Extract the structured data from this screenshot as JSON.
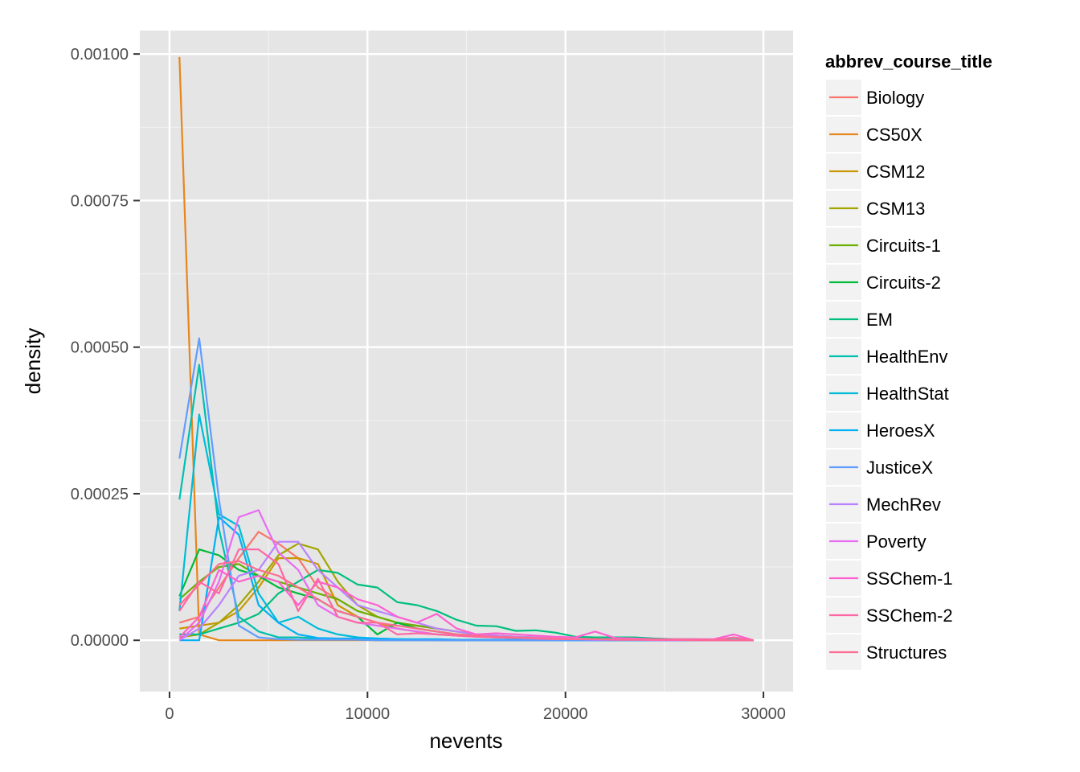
{
  "chart_data": {
    "type": "line",
    "title": "",
    "xlabel": "nevents",
    "ylabel": "density",
    "xlim": [
      -1500,
      31500
    ],
    "ylim": [
      -8.75e-05,
      0.00104
    ],
    "x_ticks": [
      0,
      10000,
      20000,
      30000
    ],
    "x_tick_labels": [
      "0",
      "10000",
      "20000",
      "30000"
    ],
    "y_ticks": [
      0,
      0.00025,
      0.0005,
      0.00075,
      0.001
    ],
    "y_tick_labels": [
      "0.00000",
      "0.00025",
      "0.00050",
      "0.00075",
      "0.00100"
    ],
    "grid": true,
    "legend_position": "right",
    "legend_title": "abbrev_course_title",
    "x": [
      500,
      1500,
      2500,
      3500,
      4500,
      5500,
      6500,
      7500,
      8500,
      9500,
      10500,
      11500,
      12500,
      13500,
      14500,
      15500,
      16500,
      17500,
      18500,
      19500,
      20500,
      21500,
      22500,
      23500,
      24500,
      25500,
      26500,
      27500,
      28500,
      29500
    ],
    "series": [
      {
        "name": "Biology",
        "color": "#F8766D",
        "values": [
          3e-05,
          4e-05,
          9e-05,
          0.00014,
          0.000185,
          0.000165,
          0.00014,
          9e-05,
          7e-05,
          5e-05,
          4e-05,
          3e-05,
          2.5e-05,
          2e-05,
          1.5e-05,
          1e-05,
          8e-06,
          6e-06,
          5e-06,
          4e-06,
          3e-06,
          3e-06,
          2e-06,
          2e-06,
          1e-06,
          1e-06,
          1e-06,
          1e-06,
          1e-06,
          0.0
        ]
      },
      {
        "name": "CS50X",
        "color": "#E7861B",
        "values": [
          0.000995,
          1e-05,
          0.0,
          0.0,
          0.0,
          0.0,
          0.0,
          0.0,
          0.0,
          0.0,
          0.0,
          0.0,
          0.0,
          0.0,
          0.0,
          0.0,
          0.0,
          0.0,
          0.0,
          0.0,
          0.0,
          0.0,
          0.0,
          0.0,
          0.0,
          0.0,
          0.0,
          0.0,
          0.0,
          0.0
        ]
      },
      {
        "name": "CSM12",
        "color": "#C99800",
        "values": [
          2e-05,
          2.5e-05,
          3e-05,
          5e-05,
          9e-05,
          0.00014,
          0.00014,
          0.00013,
          6e-05,
          4e-05,
          3e-05,
          2e-05,
          1.5e-05,
          1e-05,
          8e-06,
          6e-06,
          5e-06,
          4e-06,
          3e-06,
          2e-06,
          2e-06,
          1e-06,
          1e-06,
          1e-06,
          1e-06,
          0.0,
          0.0,
          0.0,
          0.0,
          0.0
        ]
      },
      {
        "name": "CSM13",
        "color": "#A3A500",
        "values": [
          5e-06,
          1e-05,
          3e-05,
          6e-05,
          0.0001,
          0.000145,
          0.000165,
          0.000155,
          0.0001,
          6e-05,
          4e-05,
          3e-05,
          2e-05,
          1.5e-05,
          1e-05,
          7e-06,
          5e-06,
          4e-06,
          3e-06,
          2e-06,
          2e-06,
          1e-06,
          1e-06,
          1e-06,
          0.0,
          0.0,
          0.0,
          0.0,
          0.0,
          0.0
        ]
      },
      {
        "name": "Circuits-1",
        "color": "#6BB100",
        "values": [
          7e-05,
          0.0001,
          0.000125,
          0.00013,
          0.00011,
          0.0001,
          9e-05,
          8e-05,
          7e-05,
          5e-05,
          4e-05,
          3e-05,
          2.5e-05,
          2e-05,
          1.5e-05,
          1e-05,
          8e-06,
          6e-06,
          5e-06,
          4e-06,
          3e-06,
          2e-06,
          2e-06,
          1e-06,
          1e-06,
          1e-06,
          0.0,
          0.0,
          0.0,
          0.0
        ]
      },
      {
        "name": "Circuits-2",
        "color": "#00BA38",
        "values": [
          7.5e-05,
          0.000155,
          0.000145,
          0.00012,
          0.00011,
          9e-05,
          8e-05,
          7e-05,
          5e-05,
          4e-05,
          1e-05,
          3e-05,
          2e-05,
          1.5e-05,
          1e-05,
          8e-06,
          6e-06,
          5e-06,
          4e-06,
          3e-06,
          2e-06,
          2e-06,
          1e-06,
          1e-06,
          0.0,
          0.0,
          0.0,
          0.0,
          0.0,
          0.0
        ]
      },
      {
        "name": "EM",
        "color": "#00BF7D",
        "values": [
          1e-05,
          1e-05,
          2e-05,
          3e-05,
          4.5e-05,
          8e-05,
          0.0001,
          0.00012,
          0.000115,
          9.5e-05,
          9e-05,
          6.5e-05,
          6e-05,
          5e-05,
          3.5e-05,
          2.5e-05,
          2.4e-05,
          1.6e-05,
          1.7e-05,
          1.3e-05,
          6e-06,
          5e-06,
          5e-06,
          5e-06,
          3e-06,
          2e-06,
          2e-06,
          1e-06,
          1e-06,
          0.0
        ]
      },
      {
        "name": "HealthEnv",
        "color": "#00C0AF",
        "values": [
          0.00024,
          0.00047,
          0.00019,
          4e-05,
          1.5e-05,
          5e-06,
          5e-06,
          3e-06,
          2e-06,
          1e-06,
          0.0,
          0.0,
          0.0,
          0.0,
          0.0,
          0.0,
          0.0,
          0.0,
          0.0,
          0.0,
          0.0,
          0.0,
          0.0,
          0.0,
          0.0,
          0.0,
          0.0,
          0.0,
          0.0,
          0.0
        ]
      },
      {
        "name": "HealthStat",
        "color": "#00BCD8",
        "values": [
          5e-05,
          0.000385,
          0.000215,
          0.000195,
          8e-05,
          3e-05,
          4e-05,
          2e-05,
          1e-05,
          5e-06,
          3e-06,
          2e-06,
          1e-06,
          0.0,
          0.0,
          0.0,
          0.0,
          0.0,
          0.0,
          0.0,
          0.0,
          0.0,
          0.0,
          0.0,
          0.0,
          0.0,
          0.0,
          0.0,
          0.0,
          0.0
        ]
      },
      {
        "name": "HeroesX",
        "color": "#00B0F6",
        "values": [
          0.0,
          0.0,
          0.00021,
          0.00018,
          6e-05,
          3e-05,
          1e-05,
          4e-06,
          3e-06,
          3e-06,
          3e-06,
          2e-06,
          2e-06,
          2e-06,
          1e-06,
          1e-06,
          1e-06,
          1e-06,
          1e-06,
          0.0,
          0.0,
          0.0,
          0.0,
          0.0,
          0.0,
          0.0,
          0.0,
          0.0,
          0.0,
          0.0
        ]
      },
      {
        "name": "JusticeX",
        "color": "#619CFF",
        "values": [
          0.00031,
          0.000515,
          0.00024,
          2.5e-05,
          5e-06,
          2e-06,
          1e-06,
          1e-06,
          1e-06,
          1e-06,
          0.0,
          0.0,
          0.0,
          0.0,
          0.0,
          0.0,
          0.0,
          0.0,
          0.0,
          0.0,
          0.0,
          0.0,
          0.0,
          0.0,
          0.0,
          0.0,
          0.0,
          0.0,
          0.0,
          0.0
        ]
      },
      {
        "name": "MechRev",
        "color": "#B983FF",
        "values": [
          0.0,
          2e-05,
          6e-05,
          0.00011,
          0.00012,
          0.000168,
          0.000168,
          0.00012,
          9e-05,
          6e-05,
          5e-05,
          4e-05,
          3e-05,
          2e-05,
          1.5e-05,
          1e-05,
          8e-06,
          6e-06,
          5e-06,
          4e-06,
          3e-06,
          2e-06,
          2e-06,
          1e-06,
          1e-06,
          1e-06,
          0.0,
          0.0,
          0.0,
          0.0
        ]
      },
      {
        "name": "Poverty",
        "color": "#E76BF3",
        "values": [
          0.0,
          3e-05,
          0.0001,
          0.00021,
          0.000222,
          0.00015,
          0.00012,
          6e-05,
          4e-05,
          3e-05,
          2.5e-05,
          2e-05,
          1.5e-05,
          1e-05,
          8e-06,
          6e-06,
          5e-06,
          4e-06,
          3e-06,
          2e-06,
          2e-06,
          1e-06,
          1e-06,
          1e-06,
          0.0,
          0.0,
          0.0,
          0.0,
          0.0,
          0.0
        ]
      },
      {
        "name": "SSChem-1",
        "color": "#FD61D1",
        "values": [
          5e-06,
          4e-05,
          0.00012,
          0.0001,
          0.00011,
          0.0001,
          6e-05,
          0.0001,
          9e-05,
          7e-05,
          6e-05,
          4e-05,
          3e-05,
          4.5e-05,
          2e-05,
          1e-05,
          1.2e-05,
          1e-05,
          8e-06,
          6e-06,
          5e-06,
          1.5e-05,
          4e-06,
          3e-06,
          2e-06,
          2e-06,
          2e-06,
          2e-06,
          1e-05,
          0.0
        ]
      },
      {
        "name": "SSChem-2",
        "color": "#FF67A4",
        "values": [
          5e-05,
          0.0001,
          8e-05,
          0.000155,
          0.000155,
          0.00013,
          5e-05,
          0.000105,
          4e-05,
          3e-05,
          3e-05,
          1e-05,
          1.2e-05,
          1e-05,
          8e-06,
          6e-06,
          5e-06,
          4e-06,
          3e-06,
          2e-06,
          2e-06,
          2e-06,
          1e-06,
          1e-06,
          1e-06,
          1e-06,
          1e-06,
          1e-06,
          5e-06,
          0.0
        ]
      },
      {
        "name": "Structures",
        "color": "#FF6C91",
        "values": [
          6e-05,
          9.5e-05,
          0.00013,
          0.000135,
          0.00012,
          0.00011,
          9e-05,
          7e-05,
          5e-05,
          4e-05,
          3e-05,
          2.5e-05,
          2e-05,
          1.5e-05,
          1e-05,
          8e-06,
          6e-06,
          5e-06,
          4e-06,
          3e-06,
          2e-06,
          2e-06,
          1e-06,
          1e-06,
          1e-06,
          1e-06,
          0.0,
          0.0,
          0.0,
          0.0
        ]
      }
    ]
  }
}
